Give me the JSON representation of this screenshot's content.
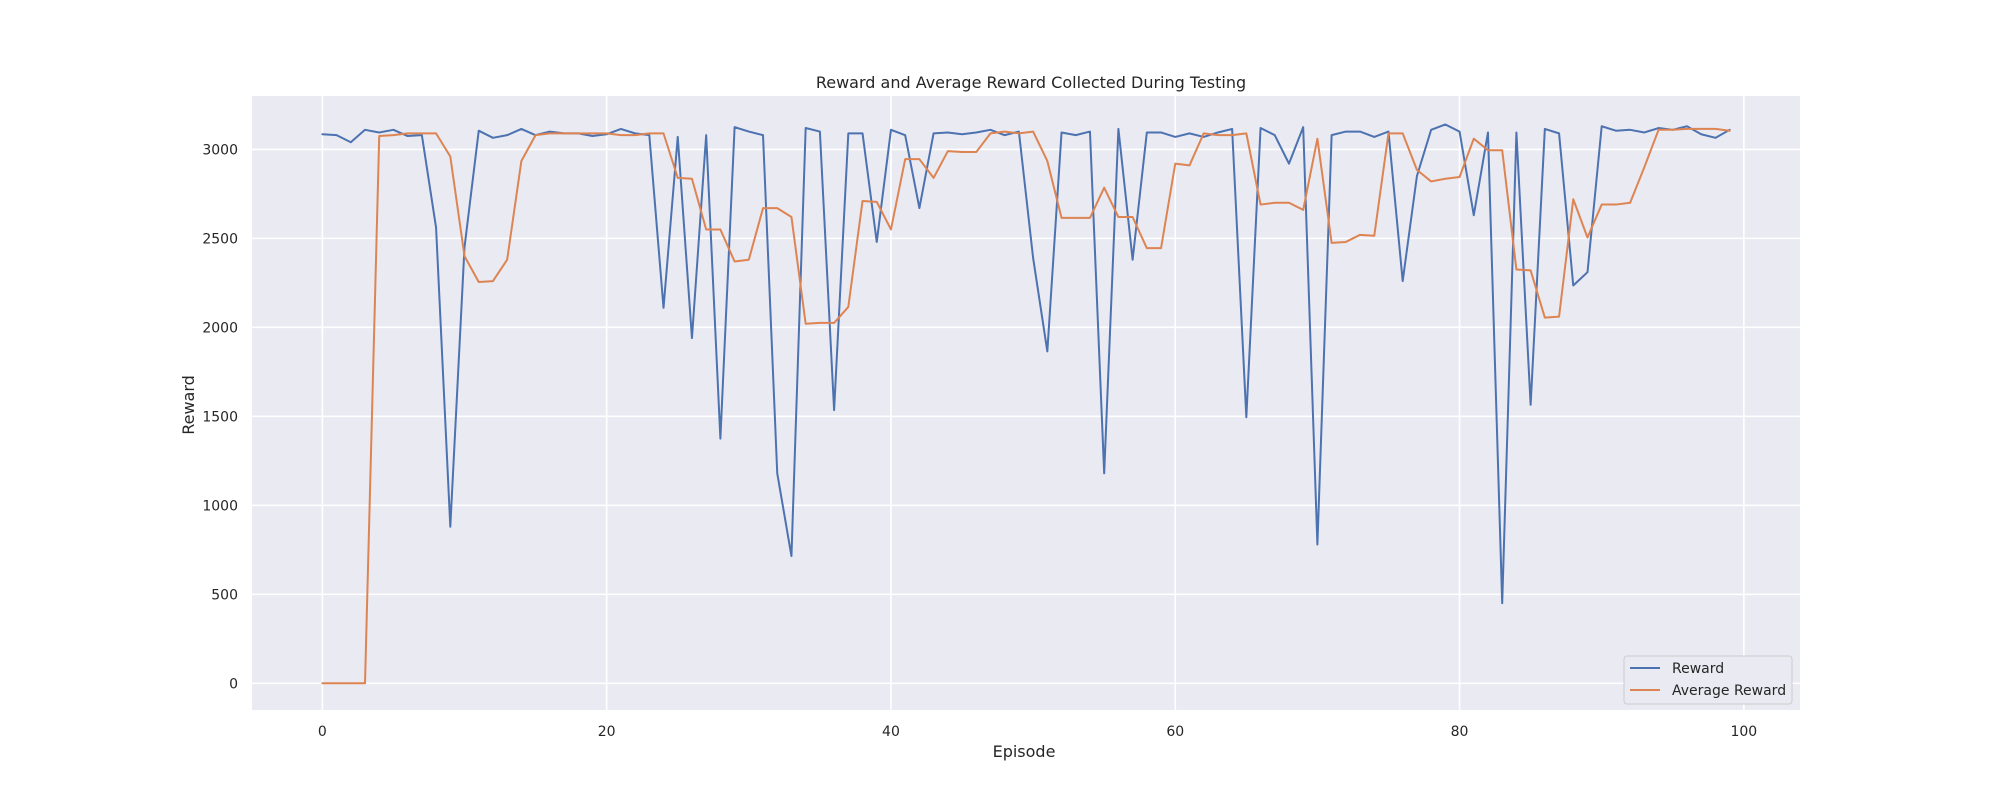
{
  "chart_data": {
    "type": "line",
    "title": "Reward and Average Reward Collected During Testing",
    "xlabel": "Episode",
    "ylabel": "Reward",
    "xlim": [
      -4.95,
      103.95
    ],
    "ylim": [
      -150,
      3300
    ],
    "xticks": [
      0,
      20,
      40,
      60,
      80,
      100
    ],
    "yticks": [
      0,
      500,
      1000,
      1500,
      2000,
      2500,
      3000
    ],
    "grid": true,
    "legend_position": "lower-right",
    "style": {
      "background": "#eaeaf2",
      "grid_color": "#ffffff"
    },
    "series": [
      {
        "name": "Reward",
        "color": "#4c72b0",
        "values": [
          3085,
          3080,
          3040,
          3110,
          3095,
          3110,
          3075,
          3080,
          2560,
          880,
          2450,
          3105,
          3065,
          3080,
          3115,
          3080,
          3100,
          3090,
          3090,
          3075,
          3085,
          3115,
          3090,
          3080,
          2110,
          3070,
          1940,
          3080,
          1375,
          3125,
          3100,
          3080,
          1180,
          715,
          3120,
          3100,
          1535,
          3090,
          3090,
          2480,
          3110,
          3080,
          2670,
          3090,
          3095,
          3085,
          3095,
          3110,
          3080,
          3100,
          2390,
          1865,
          3095,
          3080,
          3100,
          1180,
          3115,
          2380,
          3095,
          3095,
          3070,
          3090,
          3070,
          3095,
          3115,
          1495,
          3120,
          3080,
          2920,
          3125,
          780,
          3080,
          3100,
          3100,
          3070,
          3100,
          2260,
          2850,
          3110,
          3140,
          3100,
          2630,
          3095,
          450,
          3095,
          1565,
          3115,
          3090,
          2235,
          2310,
          3130,
          3105,
          3110,
          3095,
          3120,
          3110,
          3130,
          3085,
          3065,
          3110
        ]
      },
      {
        "name": "Average Reward",
        "color": "#dd8452",
        "values": [
          0,
          0,
          0,
          0,
          3075,
          3080,
          3090,
          3090,
          3090,
          2960,
          2400,
          2255,
          2260,
          2380,
          2935,
          3080,
          3090,
          3090,
          3090,
          3090,
          3090,
          3080,
          3080,
          3090,
          3090,
          2840,
          2835,
          2550,
          2550,
          2370,
          2380,
          2670,
          2670,
          2620,
          2020,
          2025,
          2025,
          2115,
          2710,
          2705,
          2550,
          2945,
          2945,
          2840,
          2990,
          2985,
          2985,
          3090,
          3100,
          3090,
          3100,
          2935,
          2615,
          2615,
          2615,
          2785,
          2620,
          2620,
          2445,
          2445,
          2920,
          2910,
          3090,
          3080,
          3080,
          3090,
          2690,
          2700,
          2700,
          2660,
          3060,
          2475,
          2480,
          2520,
          2515,
          3090,
          3090,
          2885,
          2820,
          2835,
          2845,
          3060,
          2995,
          2995,
          2325,
          2320,
          2055,
          2060,
          2720,
          2505,
          2690,
          2690,
          2700,
          2900,
          3110,
          3110,
          3115,
          3115,
          3115,
          3105
        ]
      }
    ]
  }
}
